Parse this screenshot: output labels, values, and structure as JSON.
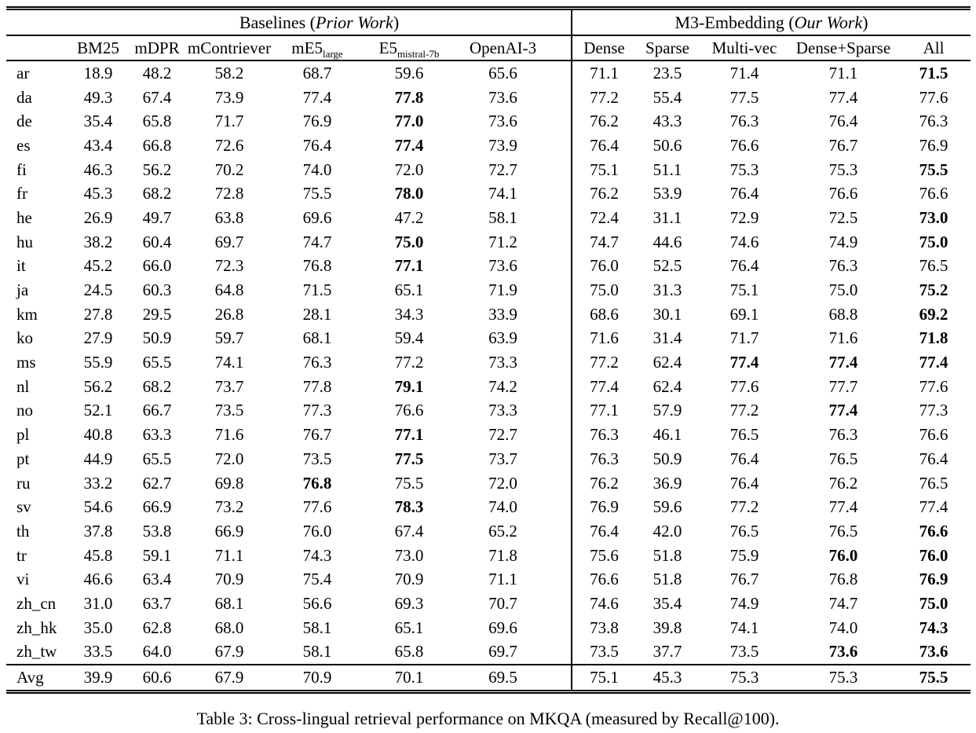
{
  "caption": "Table 3: Cross-lingual retrieval performance on MKQA (measured by Recall@100).",
  "table": {
    "groups": [
      {
        "prefix": "Baselines (",
        "italic": "Prior Work",
        "suffix": ")"
      },
      {
        "prefix": "M3-Embedding (",
        "italic": "Our Work",
        "suffix": ")"
      }
    ],
    "columns": [
      {
        "main": "BM25",
        "sub": ""
      },
      {
        "main": "mDPR",
        "sub": ""
      },
      {
        "main": "mContriever",
        "sub": ""
      },
      {
        "main": "mE5",
        "sub": "large"
      },
      {
        "main": "E5",
        "sub": "mistral-7b"
      },
      {
        "main": "OpenAI-3",
        "sub": ""
      },
      {
        "main": "Dense",
        "sub": ""
      },
      {
        "main": "Sparse",
        "sub": ""
      },
      {
        "main": "Multi-vec",
        "sub": ""
      },
      {
        "main": "Dense+Sparse",
        "sub": ""
      },
      {
        "main": "All",
        "sub": ""
      }
    ],
    "rows": [
      {
        "lang": "ar",
        "values": [
          "18.9",
          "48.2",
          "58.2",
          "68.7",
          "59.6",
          "65.6",
          "71.1",
          "23.5",
          "71.4",
          "71.1",
          "71.5"
        ],
        "bold": [
          10
        ]
      },
      {
        "lang": "da",
        "values": [
          "49.3",
          "67.4",
          "73.9",
          "77.4",
          "77.8",
          "73.6",
          "77.2",
          "55.4",
          "77.5",
          "77.4",
          "77.6"
        ],
        "bold": [
          4
        ]
      },
      {
        "lang": "de",
        "values": [
          "35.4",
          "65.8",
          "71.7",
          "76.9",
          "77.0",
          "73.6",
          "76.2",
          "43.3",
          "76.3",
          "76.4",
          "76.3"
        ],
        "bold": [
          4
        ]
      },
      {
        "lang": "es",
        "values": [
          "43.4",
          "66.8",
          "72.6",
          "76.4",
          "77.4",
          "73.9",
          "76.4",
          "50.6",
          "76.6",
          "76.7",
          "76.9"
        ],
        "bold": [
          4
        ]
      },
      {
        "lang": "fi",
        "values": [
          "46.3",
          "56.2",
          "70.2",
          "74.0",
          "72.0",
          "72.7",
          "75.1",
          "51.1",
          "75.3",
          "75.3",
          "75.5"
        ],
        "bold": [
          10
        ]
      },
      {
        "lang": "fr",
        "values": [
          "45.3",
          "68.2",
          "72.8",
          "75.5",
          "78.0",
          "74.1",
          "76.2",
          "53.9",
          "76.4",
          "76.6",
          "76.6"
        ],
        "bold": [
          4
        ]
      },
      {
        "lang": "he",
        "values": [
          "26.9",
          "49.7",
          "63.8",
          "69.6",
          "47.2",
          "58.1",
          "72.4",
          "31.1",
          "72.9",
          "72.5",
          "73.0"
        ],
        "bold": [
          10
        ]
      },
      {
        "lang": "hu",
        "values": [
          "38.2",
          "60.4",
          "69.7",
          "74.7",
          "75.0",
          "71.2",
          "74.7",
          "44.6",
          "74.6",
          "74.9",
          "75.0"
        ],
        "bold": [
          4,
          10
        ]
      },
      {
        "lang": "it",
        "values": [
          "45.2",
          "66.0",
          "72.3",
          "76.8",
          "77.1",
          "73.6",
          "76.0",
          "52.5",
          "76.4",
          "76.3",
          "76.5"
        ],
        "bold": [
          4
        ]
      },
      {
        "lang": "ja",
        "values": [
          "24.5",
          "60.3",
          "64.8",
          "71.5",
          "65.1",
          "71.9",
          "75.0",
          "31.3",
          "75.1",
          "75.0",
          "75.2"
        ],
        "bold": [
          10
        ]
      },
      {
        "lang": "km",
        "values": [
          "27.8",
          "29.5",
          "26.8",
          "28.1",
          "34.3",
          "33.9",
          "68.6",
          "30.1",
          "69.1",
          "68.8",
          "69.2"
        ],
        "bold": [
          10
        ]
      },
      {
        "lang": "ko",
        "values": [
          "27.9",
          "50.9",
          "59.7",
          "68.1",
          "59.4",
          "63.9",
          "71.6",
          "31.4",
          "71.7",
          "71.6",
          "71.8"
        ],
        "bold": [
          10
        ]
      },
      {
        "lang": "ms",
        "values": [
          "55.9",
          "65.5",
          "74.1",
          "76.3",
          "77.2",
          "73.3",
          "77.2",
          "62.4",
          "77.4",
          "77.4",
          "77.4"
        ],
        "bold": [
          8,
          9,
          10
        ]
      },
      {
        "lang": "nl",
        "values": [
          "56.2",
          "68.2",
          "73.7",
          "77.8",
          "79.1",
          "74.2",
          "77.4",
          "62.4",
          "77.6",
          "77.7",
          "77.6"
        ],
        "bold": [
          4
        ]
      },
      {
        "lang": "no",
        "values": [
          "52.1",
          "66.7",
          "73.5",
          "77.3",
          "76.6",
          "73.3",
          "77.1",
          "57.9",
          "77.2",
          "77.4",
          "77.3"
        ],
        "bold": [
          9
        ]
      },
      {
        "lang": "pl",
        "values": [
          "40.8",
          "63.3",
          "71.6",
          "76.7",
          "77.1",
          "72.7",
          "76.3",
          "46.1",
          "76.5",
          "76.3",
          "76.6"
        ],
        "bold": [
          4
        ]
      },
      {
        "lang": "pt",
        "values": [
          "44.9",
          "65.5",
          "72.0",
          "73.5",
          "77.5",
          "73.7",
          "76.3",
          "50.9",
          "76.4",
          "76.5",
          "76.4"
        ],
        "bold": [
          4
        ]
      },
      {
        "lang": "ru",
        "values": [
          "33.2",
          "62.7",
          "69.8",
          "76.8",
          "75.5",
          "72.0",
          "76.2",
          "36.9",
          "76.4",
          "76.2",
          "76.5"
        ],
        "bold": [
          3
        ]
      },
      {
        "lang": "sv",
        "values": [
          "54.6",
          "66.9",
          "73.2",
          "77.6",
          "78.3",
          "74.0",
          "76.9",
          "59.6",
          "77.2",
          "77.4",
          "77.4"
        ],
        "bold": [
          4
        ]
      },
      {
        "lang": "th",
        "values": [
          "37.8",
          "53.8",
          "66.9",
          "76.0",
          "67.4",
          "65.2",
          "76.4",
          "42.0",
          "76.5",
          "76.5",
          "76.6"
        ],
        "bold": [
          10
        ]
      },
      {
        "lang": "tr",
        "values": [
          "45.8",
          "59.1",
          "71.1",
          "74.3",
          "73.0",
          "71.8",
          "75.6",
          "51.8",
          "75.9",
          "76.0",
          "76.0"
        ],
        "bold": [
          9,
          10
        ]
      },
      {
        "lang": "vi",
        "values": [
          "46.6",
          "63.4",
          "70.9",
          "75.4",
          "70.9",
          "71.1",
          "76.6",
          "51.8",
          "76.7",
          "76.8",
          "76.9"
        ],
        "bold": [
          10
        ]
      },
      {
        "lang": "zh_cn",
        "values": [
          "31.0",
          "63.7",
          "68.1",
          "56.6",
          "69.3",
          "70.7",
          "74.6",
          "35.4",
          "74.9",
          "74.7",
          "75.0"
        ],
        "bold": [
          10
        ]
      },
      {
        "lang": "zh_hk",
        "values": [
          "35.0",
          "62.8",
          "68.0",
          "58.1",
          "65.1",
          "69.6",
          "73.8",
          "39.8",
          "74.1",
          "74.0",
          "74.3"
        ],
        "bold": [
          10
        ]
      },
      {
        "lang": "zh_tw",
        "values": [
          "33.5",
          "64.0",
          "67.9",
          "58.1",
          "65.8",
          "69.7",
          "73.5",
          "37.7",
          "73.5",
          "73.6",
          "73.6"
        ],
        "bold": [
          9,
          10
        ]
      }
    ],
    "avg_row": {
      "lang": "Avg",
      "values": [
        "39.9",
        "60.6",
        "67.9",
        "70.9",
        "70.1",
        "69.5",
        "75.1",
        "45.3",
        "75.3",
        "75.3",
        "75.5"
      ],
      "bold": [
        10
      ]
    }
  },
  "colors": {
    "background": "#ffffff",
    "text": "#000000",
    "rule": "#000000"
  }
}
